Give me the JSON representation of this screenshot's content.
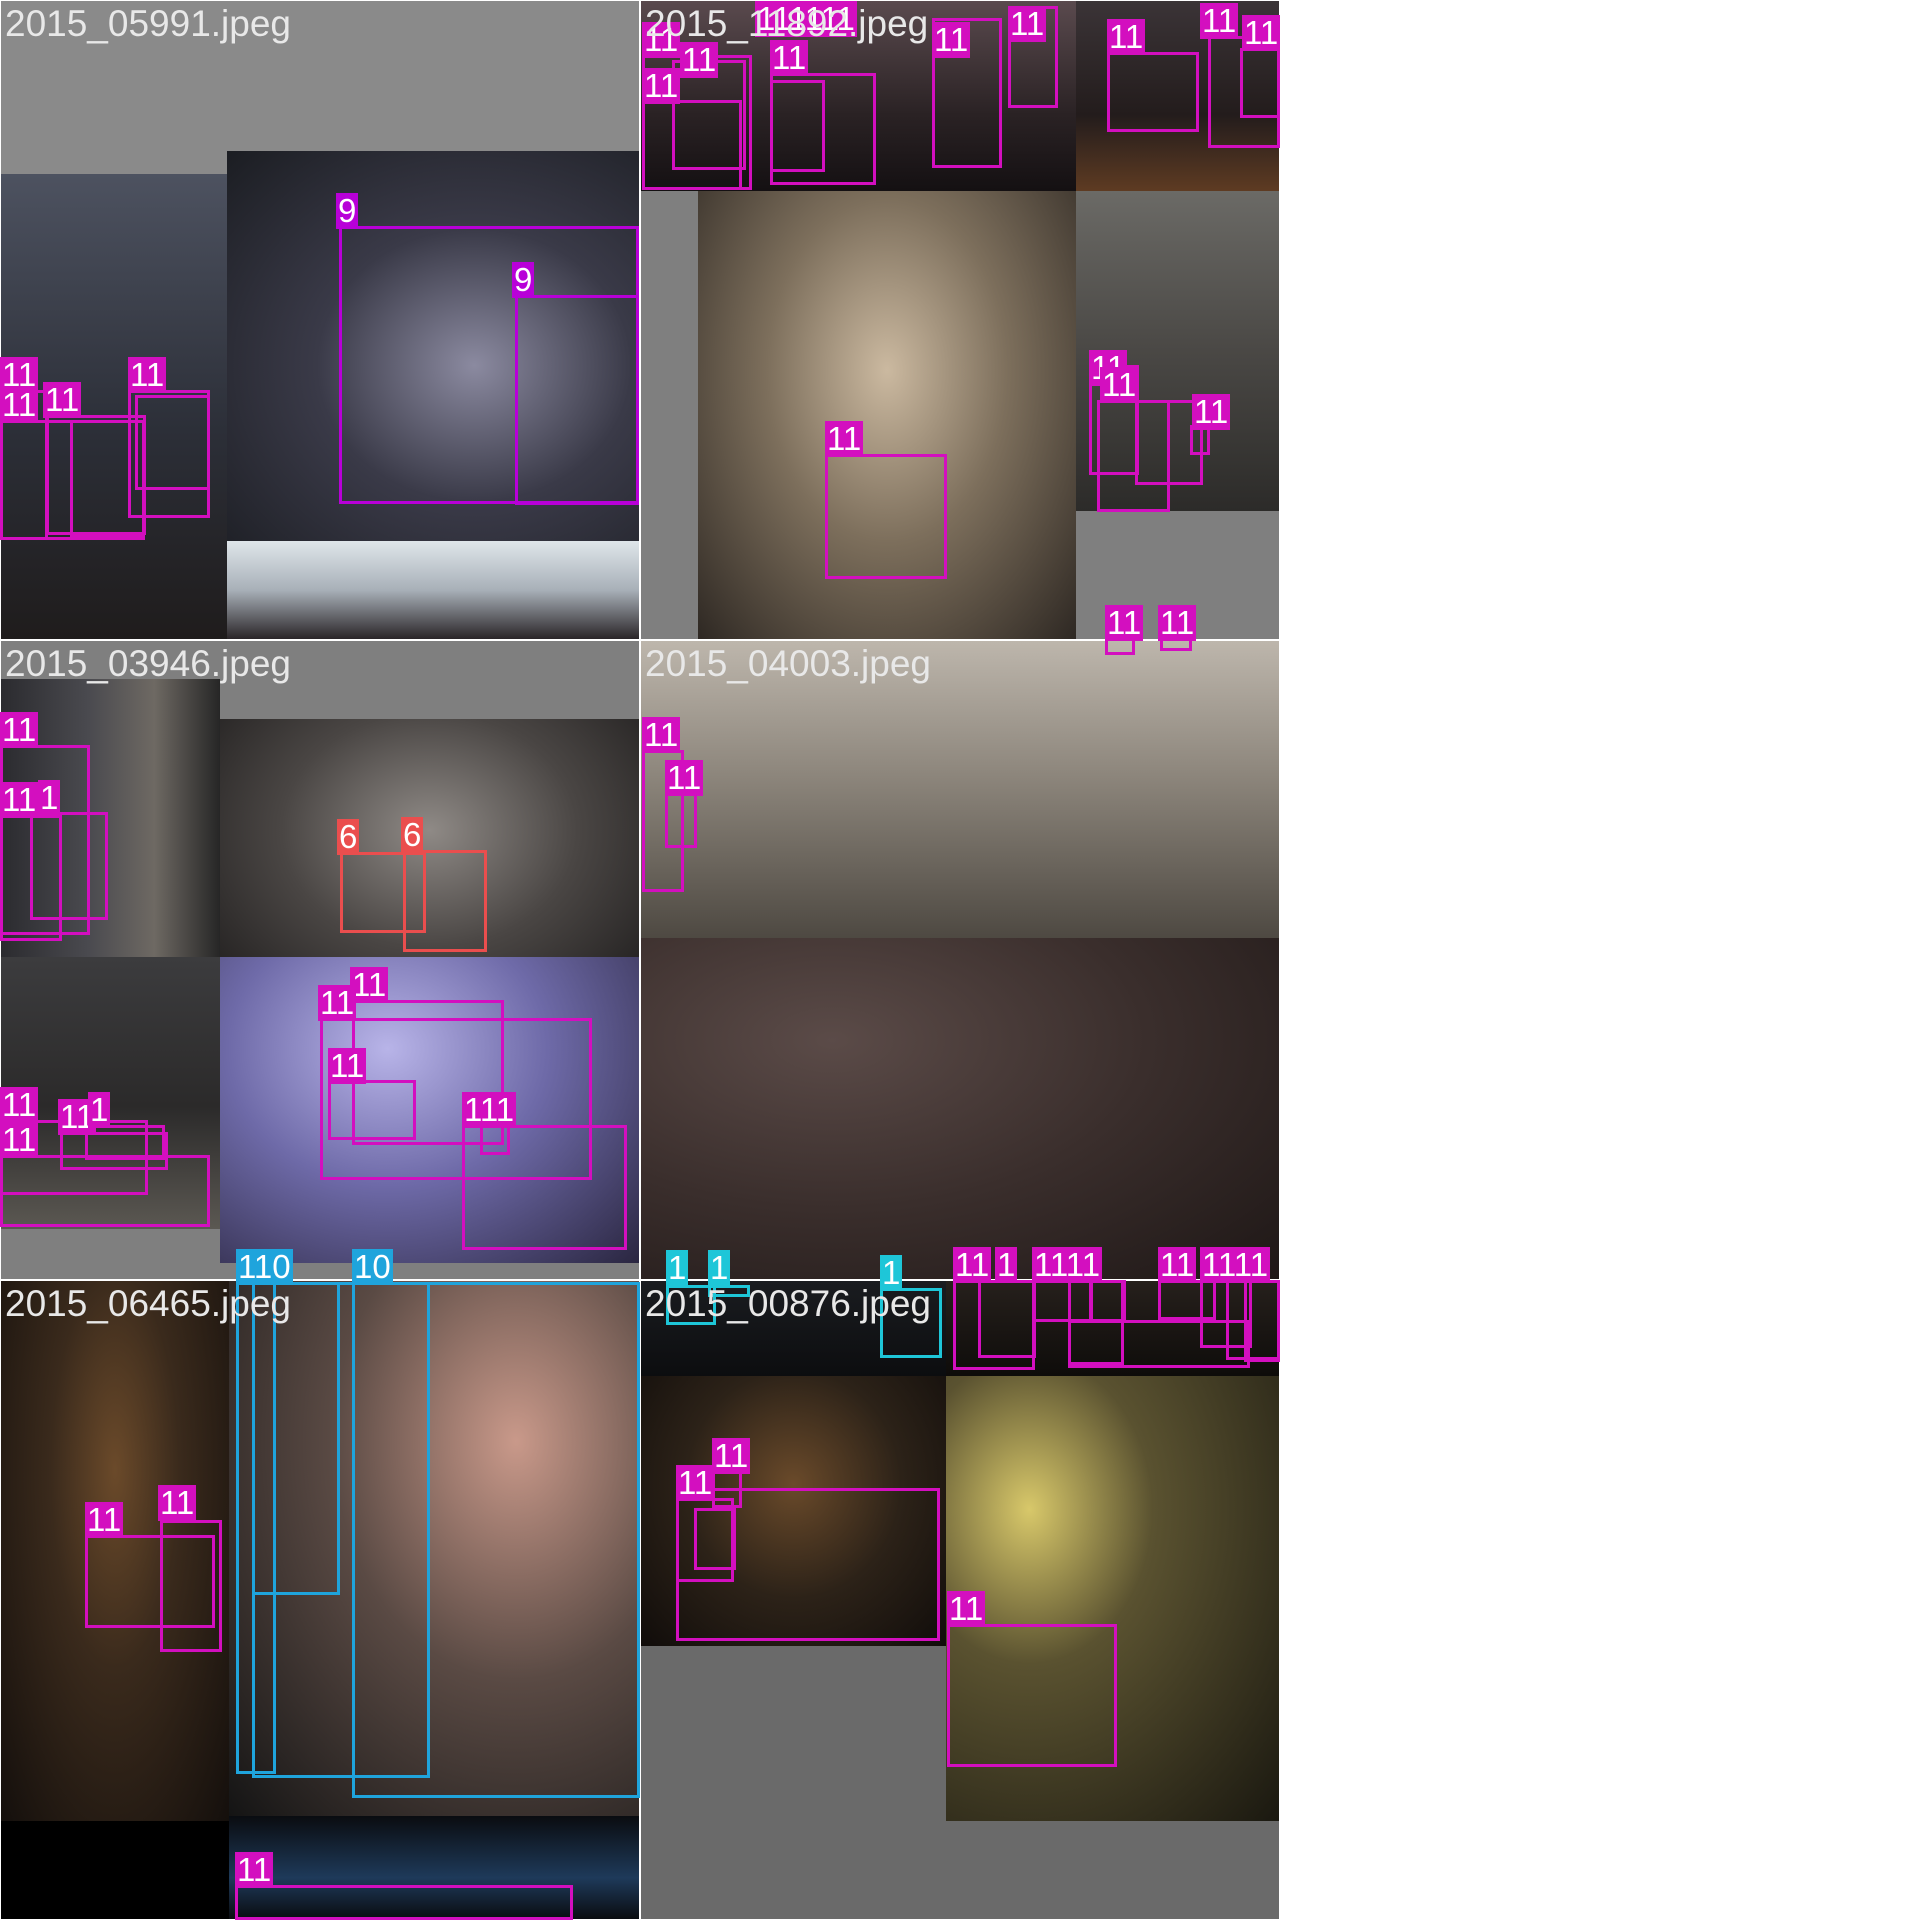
{
  "colors": {
    "9": "#b800d8",
    "11": "#d30fbf",
    "6": "#ea4e4e",
    "1": "#1ec6d8",
    "10": "#1fa4dc"
  },
  "tiles": [
    {
      "name": "2015_05991.jpeg"
    },
    {
      "name": "2015_11892.jpeg"
    },
    {
      "name": "2015_03946.jpeg"
    },
    {
      "name": "2015_04003.jpeg"
    },
    {
      "name": "2015_06465.jpeg"
    },
    {
      "name": "2015_00876.jpeg"
    }
  ],
  "labels": {
    "c9": "9",
    "c11": "11",
    "c6": "6",
    "c1": "1",
    "c10": "10",
    "c110": "110",
    "c111": "111",
    "c1111": "1111",
    "c111111": "111111"
  }
}
